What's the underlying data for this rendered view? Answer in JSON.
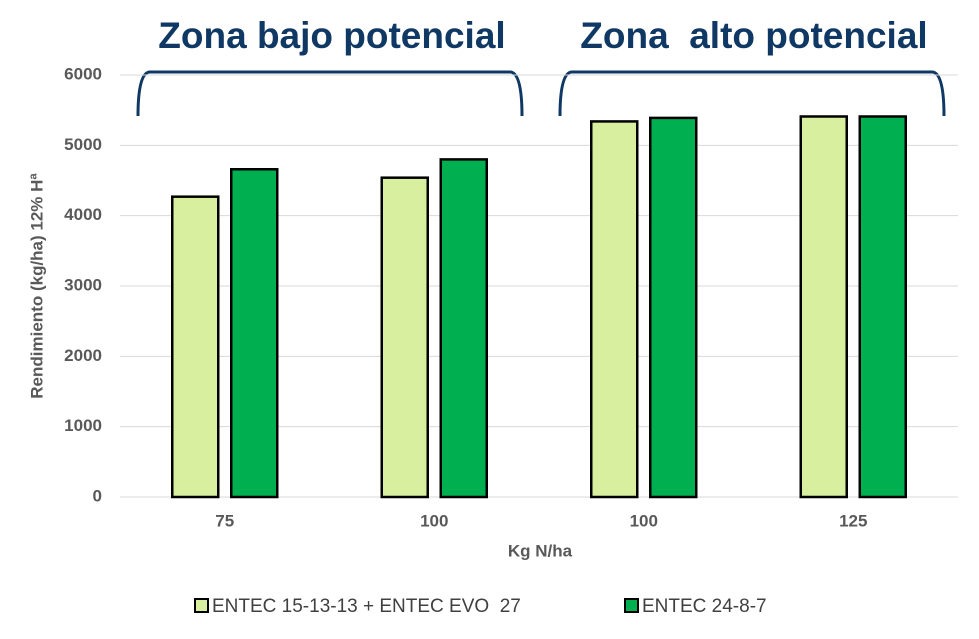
{
  "chart_data": {
    "type": "bar",
    "annotations": [
      "Zona bajo potencial",
      "Zona  alto potencial"
    ],
    "y_label": "Rendimiento (kg/ha) 12% Hª",
    "x_label": "Kg N/ha",
    "categories": [
      "75",
      "100",
      "100",
      "125"
    ],
    "series": [
      {
        "name": "ENTEC 15-13-13 + ENTEC EVO  27",
        "color": "#d8ef9f",
        "values": [
          4270,
          4540,
          5340,
          5410
        ]
      },
      {
        "name": "ENTEC 24-8-7",
        "color": "#00b050",
        "values": [
          4660,
          4800,
          5390,
          5410
        ]
      }
    ],
    "ylim": [
      0,
      6000
    ],
    "yticks": [
      0,
      1000,
      2000,
      3000,
      4000,
      5000,
      6000
    ],
    "grid": true
  }
}
